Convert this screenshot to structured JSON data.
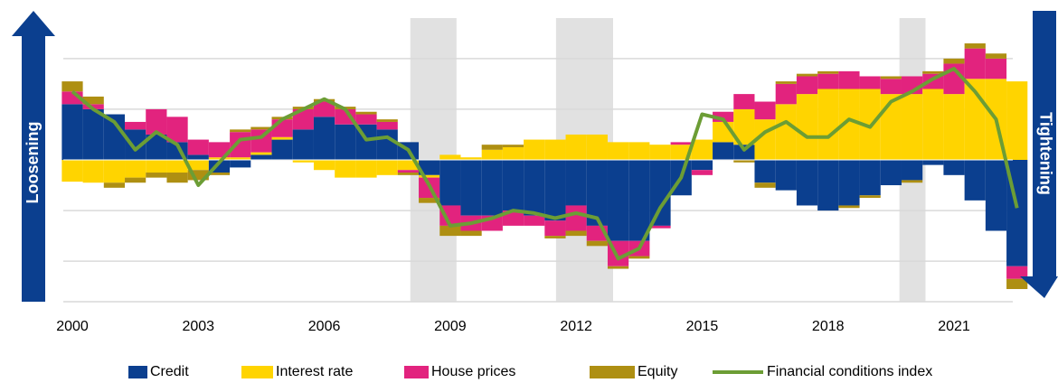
{
  "chart_data": {
    "type": "bar",
    "x": [
      2000.0,
      2000.5,
      2001.0,
      2001.5,
      2002.0,
      2002.5,
      2003.0,
      2003.5,
      2004.0,
      2004.5,
      2005.0,
      2005.5,
      2006.0,
      2006.5,
      2007.0,
      2007.5,
      2008.0,
      2008.5,
      2009.0,
      2009.5,
      2010.0,
      2010.5,
      2011.0,
      2011.5,
      2012.0,
      2012.5,
      2013.0,
      2013.5,
      2014.0,
      2014.5,
      2015.0,
      2015.5,
      2016.0,
      2016.5,
      2017.0,
      2017.5,
      2018.0,
      2018.5,
      2019.0,
      2019.5,
      2020.0,
      2020.5,
      2021.0,
      2021.5,
      2022.0,
      2022.5
    ],
    "series": [
      {
        "name": "Credit",
        "color": "#0b3f8f",
        "style": "bar",
        "values": [
          1.1,
          1.0,
          0.9,
          0.6,
          0.5,
          0.35,
          0.1,
          -0.25,
          -0.15,
          0.1,
          0.4,
          0.6,
          0.85,
          0.7,
          0.7,
          0.6,
          0.35,
          -0.3,
          -0.9,
          -1.1,
          -1.1,
          -1.0,
          -1.1,
          -1.2,
          -0.9,
          -1.3,
          -1.6,
          -1.6,
          -1.3,
          -0.7,
          -0.2,
          0.35,
          0.3,
          -0.45,
          -0.6,
          -0.9,
          -1.0,
          -0.9,
          -0.7,
          -0.5,
          -0.4,
          -0.1,
          -0.3,
          -0.8,
          -1.4,
          -2.1
        ]
      },
      {
        "name": "Interest rate",
        "color": "#ffd400",
        "style": "bar",
        "values": [
          -0.43,
          -0.45,
          -0.45,
          -0.35,
          -0.25,
          -0.25,
          -0.2,
          0.05,
          0.05,
          0.05,
          0.05,
          -0.05,
          -0.2,
          -0.35,
          -0.35,
          -0.3,
          -0.2,
          -0.05,
          0.1,
          0.05,
          0.2,
          0.25,
          0.4,
          0.4,
          0.5,
          0.5,
          0.35,
          0.35,
          0.3,
          0.3,
          0.4,
          0.4,
          0.7,
          0.8,
          1.1,
          1.3,
          1.4,
          1.4,
          1.4,
          1.3,
          1.3,
          1.4,
          1.3,
          1.6,
          1.6,
          1.55
        ]
      },
      {
        "name": "House prices",
        "color": "#e2237e",
        "style": "bar",
        "values": [
          0.25,
          0.1,
          0.0,
          0.15,
          0.5,
          0.5,
          0.3,
          0.3,
          0.5,
          0.45,
          0.35,
          0.4,
          0.3,
          0.3,
          0.2,
          0.15,
          -0.05,
          -0.4,
          -0.4,
          -0.3,
          -0.3,
          -0.3,
          -0.2,
          -0.3,
          -0.5,
          -0.3,
          -0.5,
          -0.3,
          -0.05,
          0.05,
          -0.1,
          0.2,
          0.3,
          0.35,
          0.4,
          0.35,
          0.3,
          0.35,
          0.25,
          0.3,
          0.35,
          0.3,
          0.6,
          0.6,
          0.4,
          -0.25
        ]
      },
      {
        "name": "Equity",
        "color": "#ae8f12",
        "style": "bar",
        "values": [
          0.2,
          0.15,
          -0.1,
          -0.1,
          -0.1,
          -0.2,
          -0.2,
          -0.05,
          0.05,
          0.05,
          0.05,
          0.05,
          0.05,
          0.05,
          0.05,
          0.05,
          -0.05,
          -0.1,
          -0.2,
          -0.1,
          0.1,
          0.05,
          0.0,
          -0.05,
          -0.1,
          -0.1,
          -0.05,
          -0.05,
          0.0,
          0.0,
          0.0,
          0.0,
          -0.05,
          -0.1,
          0.05,
          0.05,
          0.05,
          -0.05,
          -0.05,
          0.05,
          -0.05,
          0.05,
          0.1,
          0.1,
          0.1,
          -0.2
        ]
      },
      {
        "name": "Financial conditions index",
        "color": "#6c9d35",
        "style": "line",
        "values": [
          1.35,
          1.0,
          0.75,
          0.2,
          0.55,
          0.3,
          -0.5,
          -0.05,
          0.4,
          0.45,
          0.8,
          1.0,
          1.2,
          1.0,
          0.4,
          0.45,
          0.2,
          -0.5,
          -1.3,
          -1.25,
          -1.15,
          -1.0,
          -1.05,
          -1.15,
          -1.05,
          -1.15,
          -1.95,
          -1.75,
          -0.95,
          -0.35,
          0.9,
          0.8,
          0.2,
          0.55,
          0.75,
          0.45,
          0.45,
          0.8,
          0.65,
          1.15,
          1.35,
          1.6,
          1.8,
          1.35,
          0.8,
          -0.95
        ]
      }
    ],
    "shaded_periods": [
      [
        2008.05,
        2009.15
      ],
      [
        2011.52,
        2012.88
      ],
      [
        2019.7,
        2020.32
      ]
    ],
    "xlim": [
      1999.8,
      2022.8
    ],
    "xticks": [
      2000,
      2003,
      2006,
      2009,
      2012,
      2015,
      2018,
      2021
    ],
    "ylim": [
      -2.8,
      2.8
    ],
    "yticks": [
      -2,
      -1,
      0,
      1,
      2
    ],
    "grid": true,
    "left_label": "Loosening",
    "right_label": "Tightening"
  }
}
